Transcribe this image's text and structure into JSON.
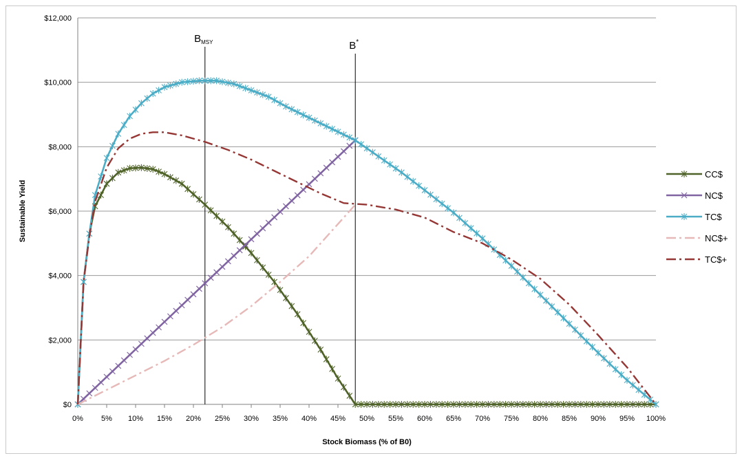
{
  "chart_data": {
    "type": "line",
    "title": "",
    "xlabel": "Stock Biomass (% of  B0)",
    "ylabel": "Sustainable  Yield",
    "xlim": [
      0,
      1
    ],
    "ylim": [
      0,
      12000
    ],
    "grid": true,
    "legend_position": "right",
    "x_ticks": [
      "0%",
      "5%",
      "10%",
      "15%",
      "20%",
      "25%",
      "30%",
      "35%",
      "40%",
      "45%",
      "50%",
      "55%",
      "60%",
      "65%",
      "70%",
      "75%",
      "80%",
      "85%",
      "90%",
      "95%",
      "100%"
    ],
    "y_ticks": [
      "$0",
      "$2,000",
      "$4,000",
      "$6,000",
      "$8,000",
      "$10,000",
      "$12,000"
    ],
    "vertical_markers": [
      {
        "x": 0.22,
        "label_main": "B",
        "label_sub": "MSY"
      },
      {
        "x": 0.48,
        "label_main": "B",
        "label_sup": "*"
      }
    ],
    "series": [
      {
        "name": "CC$",
        "color": "#4f6228",
        "style": "solid",
        "marker": "star",
        "points": [
          [
            0,
            0
          ],
          [
            0.01,
            3800
          ],
          [
            0.02,
            5300
          ],
          [
            0.03,
            6150
          ],
          [
            0.05,
            6850
          ],
          [
            0.07,
            7200
          ],
          [
            0.09,
            7330
          ],
          [
            0.11,
            7350
          ],
          [
            0.13,
            7300
          ],
          [
            0.15,
            7150
          ],
          [
            0.18,
            6850
          ],
          [
            0.22,
            6200
          ],
          [
            0.26,
            5500
          ],
          [
            0.3,
            4700
          ],
          [
            0.34,
            3800
          ],
          [
            0.38,
            2800
          ],
          [
            0.42,
            1700
          ],
          [
            0.45,
            800
          ],
          [
            0.48,
            0
          ],
          [
            0.55,
            0
          ],
          [
            0.65,
            0
          ],
          [
            0.75,
            0
          ],
          [
            0.85,
            0
          ],
          [
            0.95,
            0
          ],
          [
            1.0,
            0
          ]
        ]
      },
      {
        "name": "NC$",
        "color": "#8064a2",
        "style": "solid",
        "marker": "x",
        "points": [
          [
            0,
            0
          ],
          [
            0.48,
            8200
          ]
        ]
      },
      {
        "name": "TC$",
        "color": "#4bacc6",
        "style": "solid",
        "marker": "star",
        "points": [
          [
            0,
            0
          ],
          [
            0.01,
            3800
          ],
          [
            0.02,
            5300
          ],
          [
            0.03,
            6500
          ],
          [
            0.05,
            7650
          ],
          [
            0.07,
            8400
          ],
          [
            0.09,
            8950
          ],
          [
            0.11,
            9350
          ],
          [
            0.13,
            9650
          ],
          [
            0.15,
            9850
          ],
          [
            0.18,
            10000
          ],
          [
            0.21,
            10050
          ],
          [
            0.24,
            10050
          ],
          [
            0.27,
            9950
          ],
          [
            0.3,
            9750
          ],
          [
            0.33,
            9550
          ],
          [
            0.36,
            9250
          ],
          [
            0.4,
            8900
          ],
          [
            0.44,
            8550
          ],
          [
            0.48,
            8200
          ],
          [
            0.52,
            7700
          ],
          [
            0.56,
            7200
          ],
          [
            0.6,
            6650
          ],
          [
            0.65,
            5950
          ],
          [
            0.7,
            5150
          ],
          [
            0.75,
            4300
          ],
          [
            0.8,
            3400
          ],
          [
            0.85,
            2500
          ],
          [
            0.9,
            1600
          ],
          [
            0.95,
            750
          ],
          [
            1.0,
            0
          ]
        ]
      },
      {
        "name": "NC$+",
        "color": "#e6b9b8",
        "style": "dashdot",
        "marker": "none",
        "points": [
          [
            0,
            0
          ],
          [
            0.05,
            450
          ],
          [
            0.1,
            900
          ],
          [
            0.15,
            1350
          ],
          [
            0.2,
            1850
          ],
          [
            0.25,
            2400
          ],
          [
            0.3,
            3050
          ],
          [
            0.35,
            3800
          ],
          [
            0.4,
            4600
          ],
          [
            0.44,
            5400
          ],
          [
            0.47,
            6000
          ],
          [
            0.48,
            6200
          ]
        ]
      },
      {
        "name": "TC$+",
        "color": "#953735",
        "style": "dashdot",
        "marker": "none",
        "points": [
          [
            0,
            0
          ],
          [
            0.01,
            3800
          ],
          [
            0.02,
            5200
          ],
          [
            0.03,
            6300
          ],
          [
            0.05,
            7350
          ],
          [
            0.07,
            7950
          ],
          [
            0.09,
            8250
          ],
          [
            0.11,
            8400
          ],
          [
            0.13,
            8450
          ],
          [
            0.15,
            8450
          ],
          [
            0.18,
            8350
          ],
          [
            0.22,
            8150
          ],
          [
            0.26,
            7900
          ],
          [
            0.3,
            7600
          ],
          [
            0.34,
            7250
          ],
          [
            0.38,
            6900
          ],
          [
            0.42,
            6550
          ],
          [
            0.46,
            6250
          ],
          [
            0.5,
            6200
          ],
          [
            0.55,
            6050
          ],
          [
            0.6,
            5800
          ],
          [
            0.65,
            5350
          ],
          [
            0.7,
            5000
          ],
          [
            0.75,
            4500
          ],
          [
            0.8,
            3900
          ],
          [
            0.85,
            3100
          ],
          [
            0.9,
            2150
          ],
          [
            0.95,
            1150
          ],
          [
            1.0,
            0
          ]
        ]
      }
    ]
  }
}
